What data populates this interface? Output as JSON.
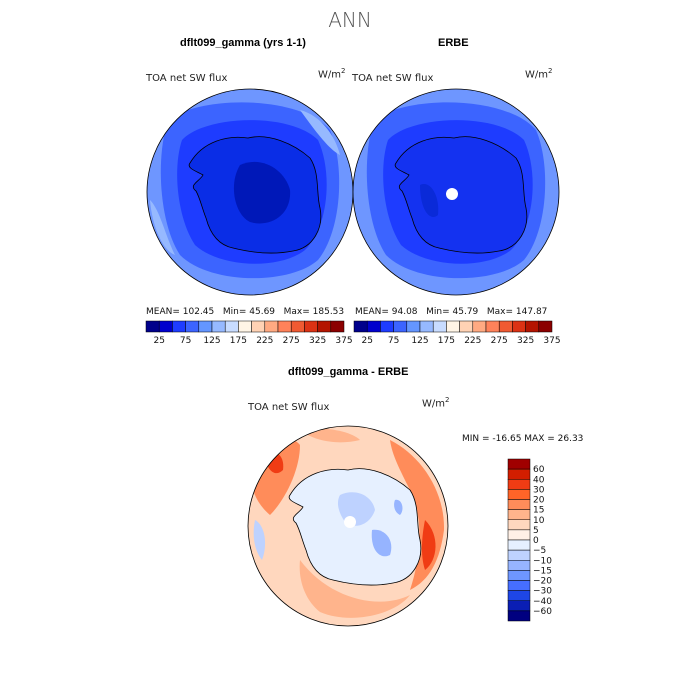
{
  "title": "ANN",
  "panels": [
    {
      "id": "model",
      "title": "dflt099_gamma (yrs 1-1)",
      "label": "TOA net SW flux",
      "unit_base": "W/m",
      "unit_exp": "2",
      "stats": {
        "mean": "102.45",
        "min": "45.69",
        "max": "185.53"
      }
    },
    {
      "id": "obs",
      "title": "ERBE",
      "label": "TOA net SW flux",
      "unit_base": "W/m",
      "unit_exp": "2",
      "stats": {
        "mean": "94.08",
        "min": "45.79",
        "max": "147.87"
      }
    }
  ],
  "diff": {
    "title": "dflt099_gamma - ERBE",
    "label": "TOA net SW flux",
    "unit_base": "W/m",
    "unit_exp": "2",
    "stats_text": "MIN = -16.65  MAX =  26.33"
  },
  "stat_labels": {
    "mean": "MEAN=",
    "min": "Min=",
    "max": "Max="
  },
  "colorbar_h": {
    "tick_labels": [
      "25",
      "75",
      "125",
      "175",
      "225",
      "275",
      "325",
      "375"
    ],
    "colors": [
      "#00008b",
      "#0000cd",
      "#1e3cff",
      "#3c64ff",
      "#6496ff",
      "#96b9ff",
      "#c8dcff",
      "#fff5e6",
      "#ffd2b4",
      "#ffaa82",
      "#ff825a",
      "#f05a32",
      "#dc3214",
      "#b41400",
      "#8b0000"
    ]
  },
  "colorbar_v": {
    "levels": [
      "60",
      "40",
      "30",
      "20",
      "15",
      "10",
      "5",
      "0",
      "−5",
      "−10",
      "−15",
      "−20",
      "−30",
      "−40",
      "−60"
    ],
    "colors": [
      "#a00000",
      "#d21e00",
      "#f03c14",
      "#ff6428",
      "#ff8c5a",
      "#ffb48c",
      "#ffd7be",
      "#fff0e6",
      "#e6f0ff",
      "#bed2ff",
      "#96b4ff",
      "#6e96ff",
      "#466eff",
      "#1e46e6",
      "#0a1eb4",
      "#000080"
    ]
  }
}
